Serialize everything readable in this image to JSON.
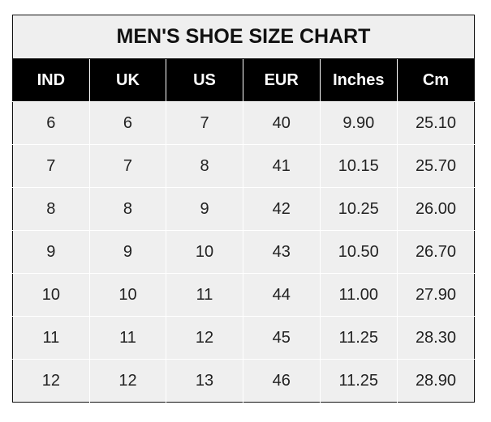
{
  "title": "MEN'S SHOE SIZE CHART",
  "columns": [
    "IND",
    "UK",
    "US",
    "EUR",
    "Inches",
    "Cm"
  ],
  "rows": [
    [
      "6",
      "6",
      "7",
      "40",
      "9.90",
      "25.10"
    ],
    [
      "7",
      "7",
      "8",
      "41",
      "10.15",
      "25.70"
    ],
    [
      "8",
      "8",
      "9",
      "42",
      "10.25",
      "26.00"
    ],
    [
      "9",
      "9",
      "10",
      "43",
      "10.50",
      "26.70"
    ],
    [
      "10",
      "10",
      "11",
      "44",
      "11.00",
      "27.90"
    ],
    [
      "11",
      "11",
      "12",
      "45",
      "11.25",
      "28.30"
    ],
    [
      "12",
      "12",
      "13",
      "46",
      "11.25",
      "28.90"
    ]
  ],
  "colors": {
    "header_bg": "#000000",
    "cell_bg": "#efefef"
  }
}
